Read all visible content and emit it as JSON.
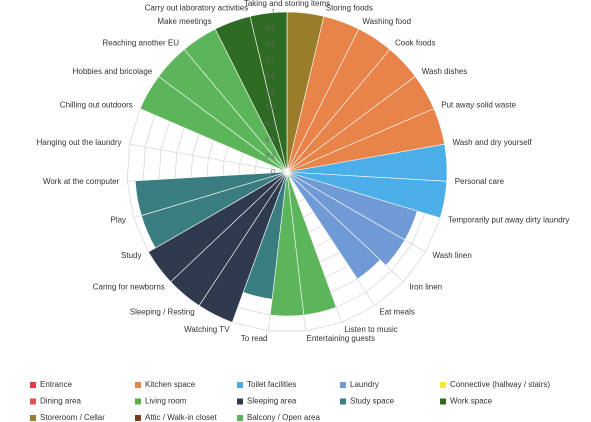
{
  "chart_data": {
    "type": "polar-area",
    "categories": [
      "Taking and storing items",
      "Storing foods",
      "Washing food",
      "Cook foods",
      "Wash dishes",
      "Put away solid waste",
      "Wash and dry yourself",
      "Personal care",
      "Temporarily put away dirty laundry",
      "Wash linen",
      "Iron linen",
      "Eat meals",
      "Listen to music",
      "Entertaining guests",
      "To read",
      "Watching TV",
      "Sleeping / Resting",
      "Caring for newborns",
      "Study",
      "Play",
      "Work at the computer",
      "Hanging out the laundry",
      "Chilling out outdoors",
      "Hobbies and bricolage",
      "Reaching another EU",
      "Make meetings",
      "Carry out laboratory activities"
    ],
    "values": [
      1,
      1,
      1,
      1,
      1,
      1,
      1,
      1,
      0.85,
      0.85,
      0.8,
      0,
      0.9,
      0.9,
      0.8,
      1,
      1,
      1,
      0.95,
      0.95,
      0,
      0,
      1,
      1,
      1,
      1,
      1
    ],
    "colors": [
      "#9a7d2a",
      "#e8834a",
      "#e8834a",
      "#e8834a",
      "#e8834a",
      "#e8834a",
      "#4baee8",
      "#4baee8",
      "#6f9ad6",
      "#6f9ad6",
      "#6f9ad6",
      "#ffffff",
      "#5cb55a",
      "#5cb55a",
      "#3a7d80",
      "#2f3a4f",
      "#2f3a4f",
      "#2f3a4f",
      "#3a7d80",
      "#3a7d80",
      "#ffffff",
      "#ffffff",
      "#5cb55a",
      "#5cb55a",
      "#5cb55a",
      "#2e6b22",
      "#2e6b22"
    ],
    "ylim": [
      0,
      1
    ],
    "yticks": [
      0,
      0.1,
      0.2,
      0.3,
      0.4,
      0.5,
      0.6,
      0.7,
      0.8,
      0.9,
      1
    ],
    "grid": true,
    "legend": [
      {
        "name": "Entrance",
        "color": "#e03c4a"
      },
      {
        "name": "Kitchen space",
        "color": "#e8834a"
      },
      {
        "name": "Toilet facilities",
        "color": "#4baee8"
      },
      {
        "name": "Laundry",
        "color": "#6f9ad6"
      },
      {
        "name": "Connective (hallway / stairs)",
        "color": "#f5e642"
      },
      {
        "name": "Dining area",
        "color": "#e05050"
      },
      {
        "name": "Living room",
        "color": "#5aac44"
      },
      {
        "name": "Sleeping area",
        "color": "#2f3a4f"
      },
      {
        "name": "Study space",
        "color": "#3a7d80"
      },
      {
        "name": "Work space",
        "color": "#2e6b22"
      },
      {
        "name": "Storeroom / Cellar",
        "color": "#9a7d2a"
      },
      {
        "name": "Attic / Walk-in closet",
        "color": "#7b3a1f"
      },
      {
        "name": "Balcony / Open area",
        "color": "#5cb55a"
      }
    ]
  }
}
